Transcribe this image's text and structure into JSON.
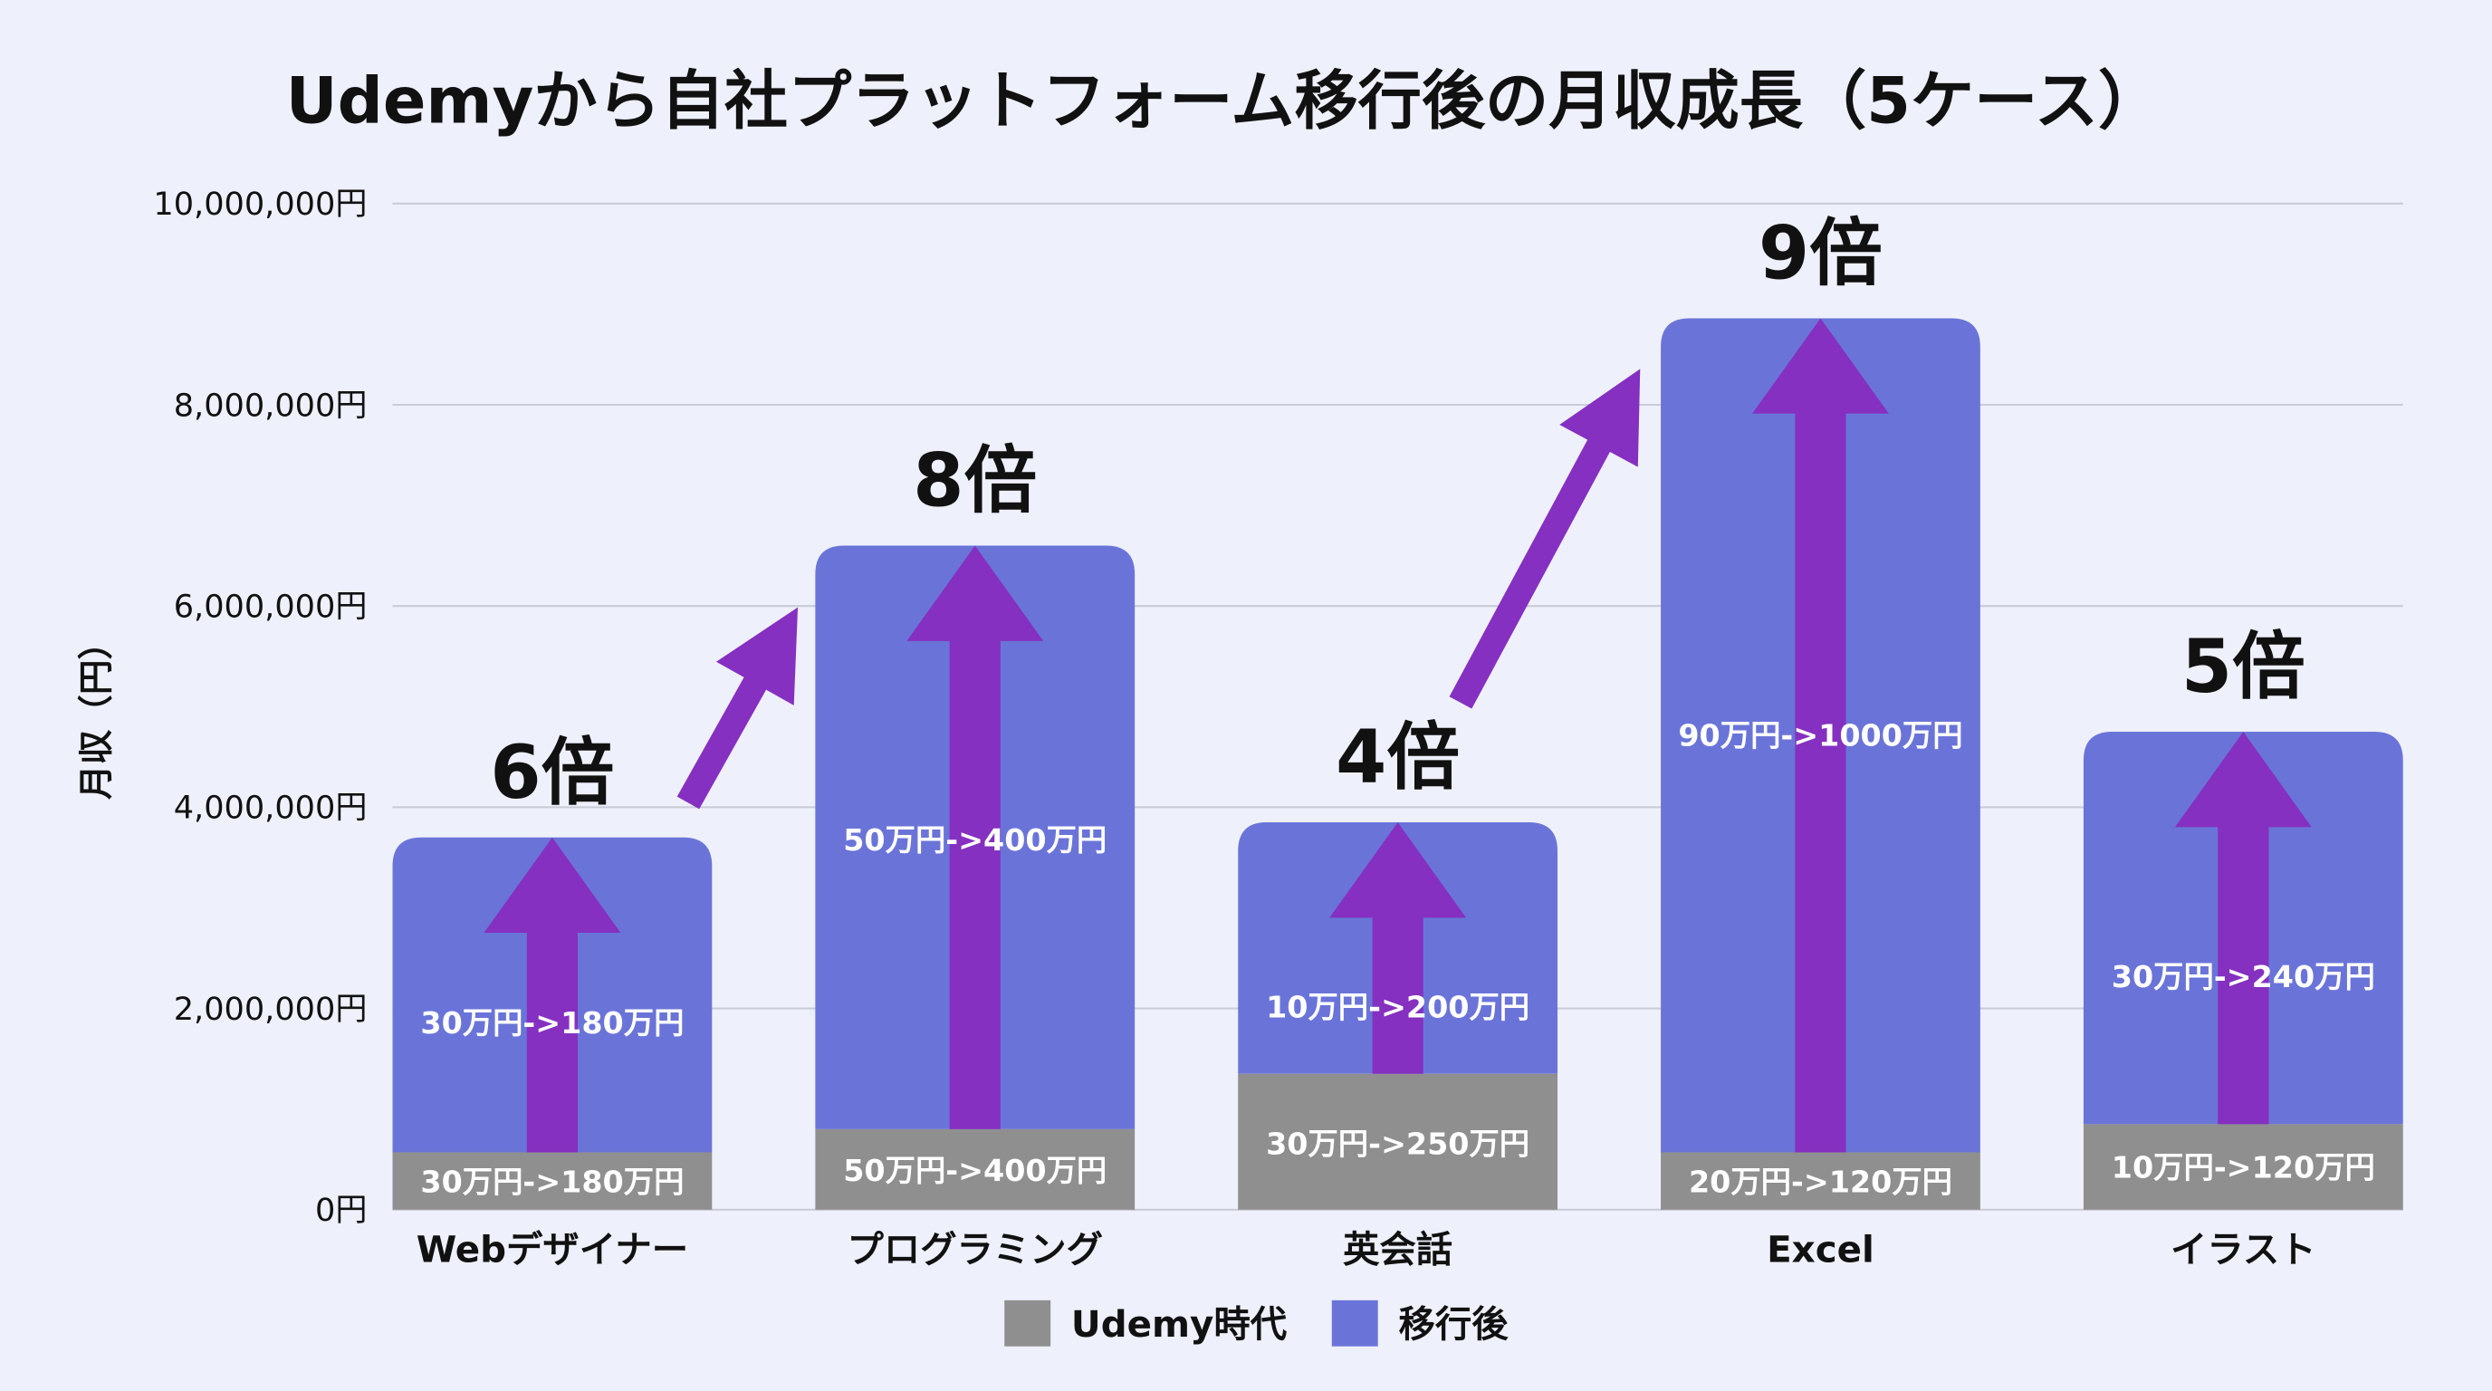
{
  "chart_data": {
    "type": "bar",
    "stacked": true,
    "title": "Udemyから自社プラットフォーム移行後の月収成長（5ケース）",
    "ylabel": "月収（円）",
    "xlabel": "",
    "ylim": [
      0,
      10000000
    ],
    "yticks": [
      "0円",
      "2,000,000円",
      "4,000,000円",
      "6,000,000円",
      "8,000,000円",
      "10,000,000円"
    ],
    "ytick_values": [
      0,
      2000000,
      4000000,
      6000000,
      8000000,
      10000000
    ],
    "grid": true,
    "legend_position": "bottom",
    "categories": [
      "Webデザイナー",
      "プログラミング",
      "英会話",
      "Excel",
      "イラスト"
    ],
    "series": [
      {
        "name": "Udemy時代",
        "color": "#8f8f8f",
        "values": [
          570000,
          800000,
          1350000,
          570000,
          850000
        ]
      },
      {
        "name": "移行後",
        "color": "#6a74d8",
        "values": [
          3130000,
          5800000,
          2500000,
          8290000,
          3900000
        ]
      }
    ],
    "multipliers": [
      "6倍",
      "8倍",
      "4倍",
      "9倍",
      "5倍"
    ],
    "bar_labels_upper": [
      "30万円->180万円",
      "50万円->400万円",
      "10万円->200万円",
      "90万円->1000万円",
      "30万円->240万円"
    ],
    "bar_labels_lower": [
      "30万円->180万円",
      "50万円->400万円",
      "30万円->250万円",
      "20万円->120万円",
      "10万円->120万円"
    ],
    "arrow_color": "#8530c0"
  }
}
